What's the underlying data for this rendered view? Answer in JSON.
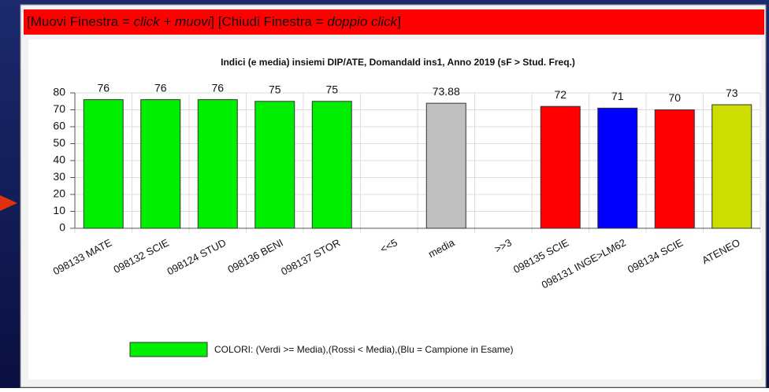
{
  "window": {
    "header": [
      "[Muovi Finestra = ",
      "click + muovi",
      "] [Chiudi Finestra = ",
      "doppio click",
      "]"
    ]
  },
  "chart_data": {
    "type": "bar",
    "title": "Indici (e media) insiemi DIP/ATE, DomandaId ins1, Anno 2019 (sF > Stud. Freq.)",
    "categories": [
      "098133 MATE",
      "098132 SCIE",
      "098124 STUD",
      "098136 BENI",
      "098137 STOR",
      "<<5",
      "media",
      ">>3",
      "098135 SCIE",
      "098131 INGE>LM62",
      "098134 SCIE",
      "ATENEO"
    ],
    "values": [
      76,
      76,
      76,
      75,
      75,
      null,
      73.88,
      null,
      72,
      71,
      70,
      73
    ],
    "colors": [
      "#00ee00",
      "#00ee00",
      "#00ee00",
      "#00ee00",
      "#00ee00",
      null,
      "#c0c0c0",
      null,
      "#ff0000",
      "#0000ff",
      "#ff0000",
      "#ccdd00"
    ],
    "ylim": [
      0,
      80
    ],
    "yticks": [
      0,
      10,
      20,
      30,
      40,
      50,
      60,
      70,
      80
    ],
    "grid": true,
    "legend": {
      "label": "COLORI: (Verdi >= Media),(Rossi < Media),(Blu = Campione in Esame)",
      "color": "#00ee00"
    }
  }
}
